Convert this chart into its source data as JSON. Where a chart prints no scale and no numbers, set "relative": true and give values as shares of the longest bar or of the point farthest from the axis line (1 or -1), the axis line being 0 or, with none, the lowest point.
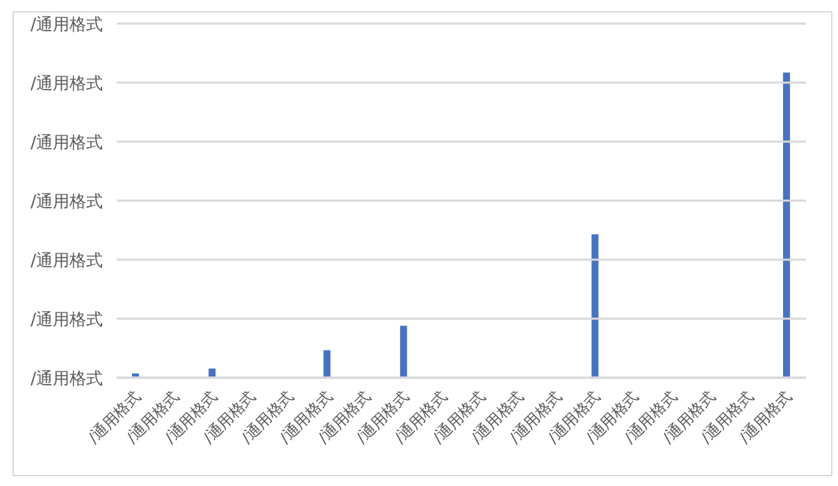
{
  "chart_data": {
    "type": "bar",
    "relative": true,
    "categories": [
      "/通用格式",
      "/通用格式",
      "/通用格式",
      "/通用格式",
      "/通用格式",
      "/通用格式",
      "/通用格式",
      "/通用格式",
      "/通用格式",
      "/通用格式",
      "/通用格式",
      "/通用格式",
      "/通用格式",
      "/通用格式",
      "/通用格式",
      "/通用格式",
      "/通用格式",
      "/通用格式"
    ],
    "values": [
      0.014,
      0,
      0.03,
      0,
      0,
      0.09,
      0,
      0.17,
      0,
      0,
      0,
      0,
      0.47,
      0,
      0,
      0,
      0,
      1
    ],
    "color": "#4472c4",
    "annotations": [
      "/通用格式",
      "/通用格式",
      "/通用格式",
      "/通用格式",
      "/通用格式",
      "/通用格式",
      "/通用格式"
    ],
    "grid": "y"
  }
}
